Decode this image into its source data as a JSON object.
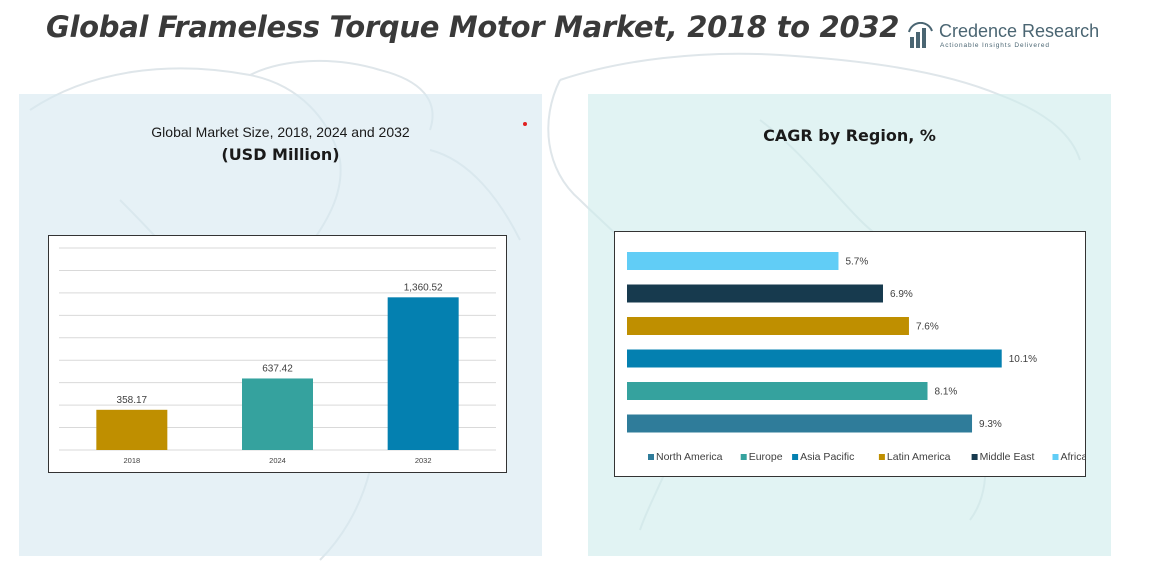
{
  "header": {
    "title": "Global Frameless Torque Motor Market, 2018 to 2032"
  },
  "logo": {
    "name": "Credence Research",
    "tagline": "Actionable Insights Delivered",
    "icon": "bar-chart-arc-logo-icon",
    "color": "#4a6572"
  },
  "left_panel": {
    "title_line1": "Global Market Size, 2018, 2024 and 2032",
    "title_line2": "(USD Million)"
  },
  "right_panel": {
    "title": "CAGR by Region, %"
  },
  "chart_data": [
    {
      "type": "bar",
      "orientation": "vertical",
      "categories": [
        "2018",
        "2024",
        "2032"
      ],
      "values": [
        358.17,
        637.42,
        1360.52
      ],
      "value_labels": [
        "358.17",
        "637.42",
        "1,360.52"
      ],
      "colors": [
        "#bf8f00",
        "#35a29e",
        "#0480b0"
      ],
      "ylim": [
        0,
        1800
      ],
      "grid": true,
      "legend": "none"
    },
    {
      "type": "bar",
      "orientation": "horizontal",
      "categories": [
        "Africa",
        "Middle East",
        "Latin America",
        "Asia Pacific",
        "Europe",
        "North America"
      ],
      "values": [
        5.7,
        6.9,
        7.6,
        10.1,
        8.1,
        9.3
      ],
      "value_labels": [
        "5.7%",
        "6.9%",
        "7.6%",
        "10.1%",
        "8.1%",
        "9.3%"
      ],
      "colors": [
        "#61cdf6",
        "#173a4e",
        "#bf8f00",
        "#0480b0",
        "#35a29e",
        "#2f7c9a"
      ],
      "xlim": [
        0,
        10.8
      ],
      "grid": false,
      "legend": "bottom",
      "legend_order": [
        "North America",
        "Europe",
        "Asia Pacific",
        "Latin America",
        "Middle East",
        "Africa"
      ],
      "legend_colors": [
        "#2f7c9a",
        "#35a29e",
        "#0480b0",
        "#bf8f00",
        "#173a4e",
        "#61cdf6"
      ]
    }
  ]
}
